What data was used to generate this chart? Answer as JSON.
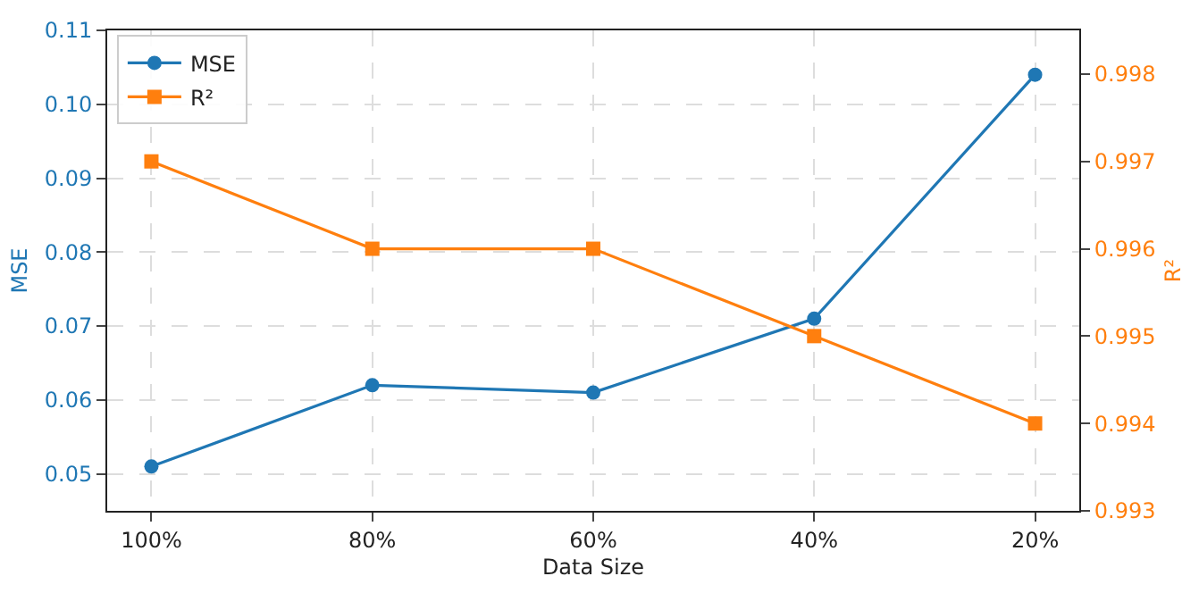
{
  "chart_data": {
    "type": "line",
    "xlabel": "Data Size",
    "ylabel": "MSE",
    "y2label": "R²",
    "categories": [
      "100%",
      "80%",
      "60%",
      "40%",
      "20%"
    ],
    "series": [
      {
        "name": "MSE",
        "color": "#1f77b4",
        "marker": "circle",
        "values": [
          0.051,
          0.062,
          0.061,
          0.071,
          0.104
        ]
      },
      {
        "name": "R²",
        "color": "#ff7f0e",
        "marker": "square",
        "axis": "y2",
        "values": [
          0.997,
          0.996,
          0.996,
          0.995,
          0.994
        ]
      }
    ],
    "ylim": [
      0.045,
      0.11
    ],
    "yticks": [
      {
        "value": 0.05,
        "label": "0.05"
      },
      {
        "value": 0.06,
        "label": "0.06"
      },
      {
        "value": 0.07,
        "label": "0.07"
      },
      {
        "value": 0.08,
        "label": "0.08"
      },
      {
        "value": 0.09,
        "label": "0.09"
      },
      {
        "value": 0.1,
        "label": "0.10"
      },
      {
        "value": 0.11,
        "label": "0.11"
      }
    ],
    "y2lim": [
      0.993,
      0.9985
    ],
    "y2ticks": [
      {
        "value": 0.993,
        "label": "0.993"
      },
      {
        "value": 0.994,
        "label": "0.994"
      },
      {
        "value": 0.995,
        "label": "0.995"
      },
      {
        "value": 0.996,
        "label": "0.996"
      },
      {
        "value": 0.997,
        "label": "0.997"
      },
      {
        "value": 0.998,
        "label": "0.998"
      }
    ],
    "grid": true,
    "legend": "top left",
    "line_style": "solid"
  }
}
